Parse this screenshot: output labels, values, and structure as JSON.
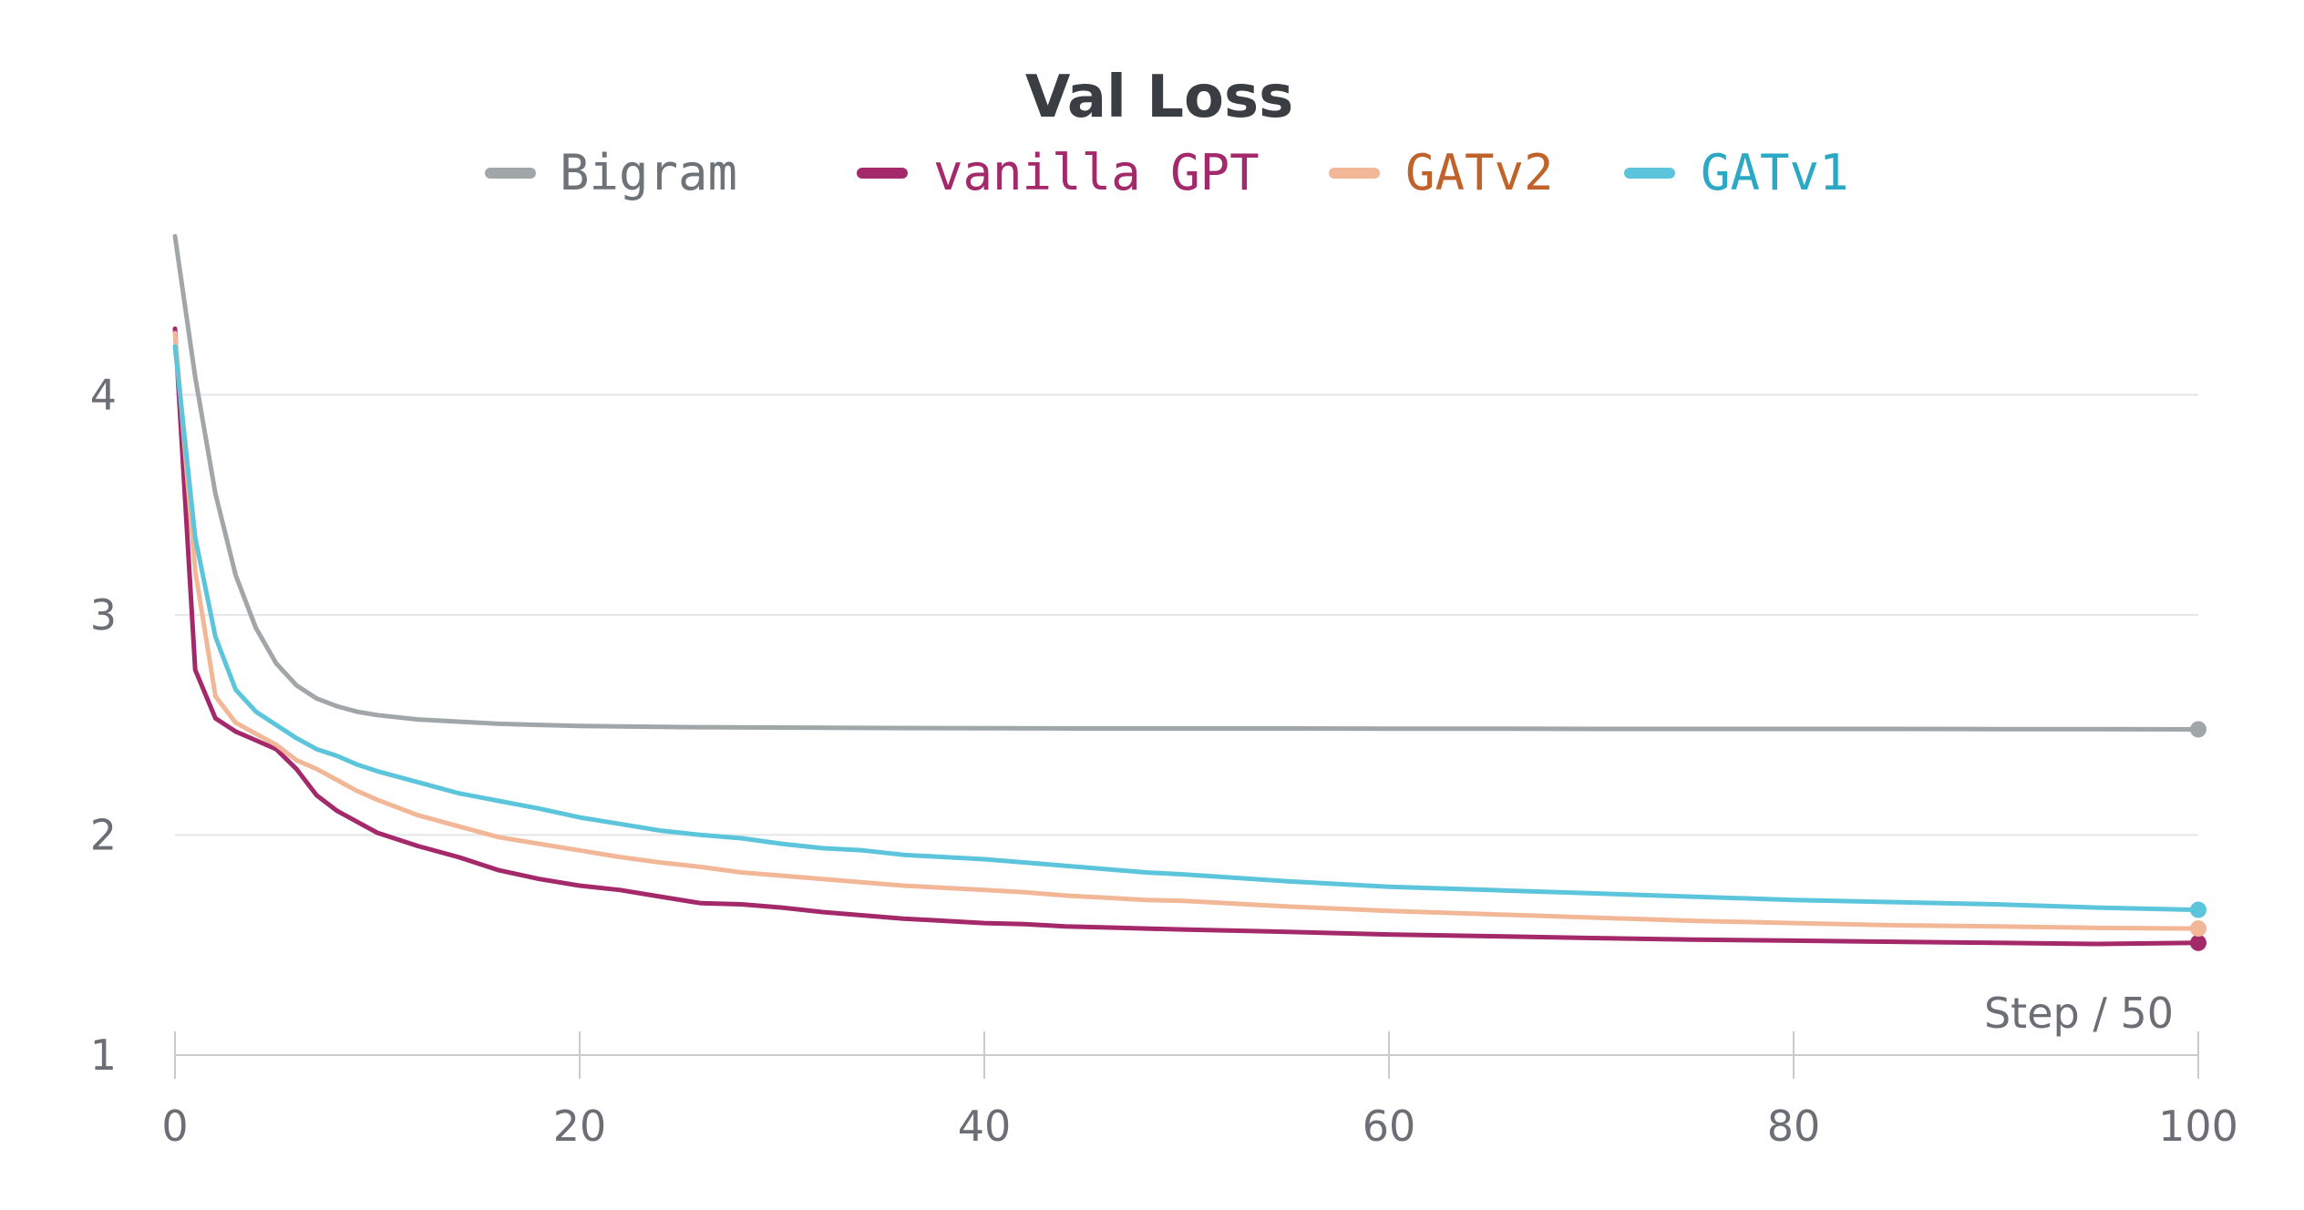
{
  "chart_data": {
    "type": "line",
    "title": "Val Loss",
    "xlabel": "Step / 50",
    "ylabel": "",
    "xlim": [
      0,
      100
    ],
    "ylim": [
      1,
      4.8
    ],
    "x_ticks": [
      0,
      20,
      40,
      60,
      80,
      100
    ],
    "y_ticks": [
      1,
      2,
      3,
      4
    ],
    "grid": true,
    "legend_position": "top",
    "series": [
      {
        "name": "Bigram",
        "color": "#a1a6a9",
        "text_color": "#6e7378",
        "x": [
          0,
          1,
          2,
          3,
          4,
          5,
          6,
          7,
          8,
          9,
          10,
          12,
          14,
          16,
          18,
          20,
          25,
          30,
          35,
          40,
          45,
          50,
          55,
          60,
          65,
          70,
          75,
          80,
          85,
          90,
          95,
          100
        ],
        "y": [
          4.72,
          4.08,
          3.55,
          3.18,
          2.94,
          2.78,
          2.68,
          2.62,
          2.585,
          2.56,
          2.545,
          2.525,
          2.515,
          2.505,
          2.5,
          2.495,
          2.49,
          2.488,
          2.486,
          2.485,
          2.484,
          2.484,
          2.484,
          2.483,
          2.483,
          2.482,
          2.482,
          2.482,
          2.482,
          2.481,
          2.481,
          2.48
        ]
      },
      {
        "name": "vanilla GPT",
        "color": "#a3296a",
        "text_color": "#a3296a",
        "x": [
          0,
          1,
          2,
          3,
          4,
          5,
          6,
          7,
          8,
          9,
          10,
          12,
          14,
          16,
          18,
          20,
          22,
          24,
          26,
          28,
          30,
          32,
          34,
          36,
          38,
          40,
          42,
          44,
          46,
          48,
          50,
          55,
          60,
          65,
          70,
          75,
          80,
          85,
          90,
          95,
          100
        ],
        "y": [
          4.3,
          2.75,
          2.53,
          2.47,
          2.43,
          2.39,
          2.3,
          2.18,
          2.11,
          2.06,
          2.01,
          1.95,
          1.9,
          1.84,
          1.8,
          1.77,
          1.75,
          1.72,
          1.69,
          1.685,
          1.67,
          1.65,
          1.635,
          1.62,
          1.61,
          1.6,
          1.595,
          1.585,
          1.58,
          1.575,
          1.57,
          1.56,
          1.548,
          1.54,
          1.532,
          1.525,
          1.52,
          1.515,
          1.51,
          1.505,
          1.51
        ]
      },
      {
        "name": "GATv2",
        "color": "#f2b797",
        "text_color": "#c0632a",
        "x": [
          0,
          1,
          2,
          3,
          4,
          5,
          6,
          7,
          8,
          9,
          10,
          12,
          14,
          16,
          18,
          20,
          22,
          24,
          26,
          28,
          30,
          32,
          34,
          36,
          38,
          40,
          42,
          44,
          46,
          48,
          50,
          55,
          60,
          65,
          70,
          75,
          80,
          85,
          90,
          95,
          100
        ],
        "y": [
          4.28,
          3.2,
          2.63,
          2.51,
          2.46,
          2.41,
          2.34,
          2.3,
          2.25,
          2.2,
          2.16,
          2.09,
          2.04,
          1.99,
          1.96,
          1.93,
          1.9,
          1.875,
          1.855,
          1.83,
          1.815,
          1.8,
          1.785,
          1.77,
          1.76,
          1.75,
          1.74,
          1.725,
          1.715,
          1.705,
          1.7,
          1.675,
          1.655,
          1.64,
          1.625,
          1.61,
          1.6,
          1.59,
          1.585,
          1.578,
          1.575
        ]
      },
      {
        "name": "GATv1",
        "color": "#5cc5dc",
        "text_color": "#2aa8c4",
        "x": [
          0,
          1,
          2,
          3,
          4,
          5,
          6,
          7,
          8,
          9,
          10,
          12,
          14,
          16,
          18,
          20,
          22,
          24,
          26,
          28,
          30,
          32,
          34,
          36,
          38,
          40,
          42,
          44,
          46,
          48,
          50,
          55,
          60,
          65,
          70,
          75,
          80,
          85,
          90,
          95,
          100
        ],
        "y": [
          4.22,
          3.35,
          2.9,
          2.66,
          2.56,
          2.5,
          2.44,
          2.39,
          2.36,
          2.32,
          2.29,
          2.24,
          2.19,
          2.155,
          2.12,
          2.08,
          2.05,
          2.02,
          2.0,
          1.985,
          1.96,
          1.94,
          1.93,
          1.91,
          1.9,
          1.89,
          1.875,
          1.86,
          1.845,
          1.83,
          1.82,
          1.79,
          1.765,
          1.75,
          1.735,
          1.72,
          1.705,
          1.695,
          1.685,
          1.67,
          1.66
        ]
      }
    ]
  }
}
